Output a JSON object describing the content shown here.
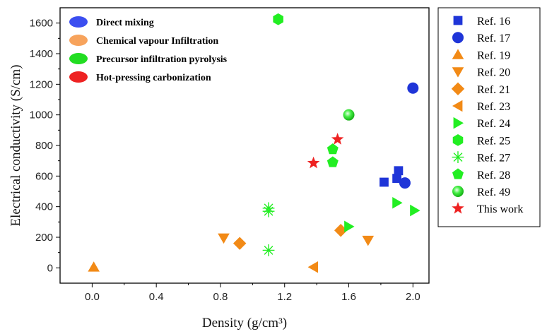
{
  "chart_data": {
    "type": "scatter",
    "xlabel": "Density (g/cm³)",
    "ylabel": "Electrical conductivity (S/cm)",
    "xlim": [
      -0.2,
      2.1
    ],
    "ylim": [
      -100,
      1700
    ],
    "xticks": [
      0.0,
      0.4,
      0.8,
      1.2,
      1.6,
      2.0
    ],
    "xtick_labels": [
      "0.0",
      "0.4",
      "0.8",
      "1.2",
      "1.6",
      "2.0"
    ],
    "yticks": [
      0,
      200,
      400,
      600,
      800,
      1000,
      1200,
      1400,
      1600
    ],
    "ytick_labels": [
      "0",
      "200",
      "400",
      "600",
      "800",
      "1000",
      "1200",
      "1400",
      "1600"
    ],
    "grid": false,
    "category_legend": {
      "placement": "top-left",
      "items": [
        {
          "label": "Direct mixing",
          "color": "#3b4ef0"
        },
        {
          "label": "Chemical vapour Infiltration",
          "color": "#f7a35c"
        },
        {
          "label": "Precursor infiltration pyrolysis",
          "color": "#22dd22"
        },
        {
          "label": "Hot-pressing carbonization",
          "color": "#ee2222"
        }
      ]
    },
    "series_legend_placement": "right",
    "series": [
      {
        "name": "Ref. 16",
        "marker": "square",
        "color": "#1f35d8",
        "points": [
          [
            1.82,
            560
          ],
          [
            1.9,
            585
          ],
          [
            1.91,
            635
          ]
        ]
      },
      {
        "name": "Ref. 17",
        "marker": "circle",
        "color": "#1f35d8",
        "points": [
          [
            1.95,
            555
          ],
          [
            2.0,
            1175
          ]
        ]
      },
      {
        "name": "Ref. 19",
        "marker": "triangle-up",
        "color": "#f28a16",
        "points": [
          [
            0.01,
            5
          ]
        ]
      },
      {
        "name": "Ref. 20",
        "marker": "triangle-down",
        "color": "#f28a16",
        "points": [
          [
            0.82,
            195
          ],
          [
            1.72,
            180
          ]
        ]
      },
      {
        "name": "Ref. 21",
        "marker": "diamond",
        "color": "#f28a16",
        "points": [
          [
            0.92,
            160
          ],
          [
            1.55,
            245
          ]
        ]
      },
      {
        "name": "Ref. 23",
        "marker": "triangle-left",
        "color": "#f28a16",
        "points": [
          [
            1.38,
            5
          ]
        ]
      },
      {
        "name": "Ref. 24",
        "marker": "triangle-right",
        "color": "#22ee22",
        "points": [
          [
            1.6,
            270
          ],
          [
            1.9,
            425
          ],
          [
            2.01,
            375
          ]
        ]
      },
      {
        "name": "Ref. 25",
        "marker": "hexagon",
        "color": "#22ee22",
        "points": [
          [
            1.16,
            1625
          ]
        ]
      },
      {
        "name": "Ref. 27",
        "marker": "asterisk",
        "color": "#22ee22",
        "points": [
          [
            1.1,
            115
          ],
          [
            1.1,
            370
          ],
          [
            1.1,
            390
          ]
        ]
      },
      {
        "name": "Ref. 28",
        "marker": "pentagon",
        "color": "#22ee22",
        "points": [
          [
            1.5,
            690
          ],
          [
            1.5,
            775
          ]
        ]
      },
      {
        "name": "Ref. 49",
        "marker": "sphere",
        "color": "#22ee22",
        "points": [
          [
            1.6,
            1000
          ]
        ]
      },
      {
        "name": "This work",
        "marker": "star",
        "color": "#ee2222",
        "points": [
          [
            1.38,
            685
          ],
          [
            1.53,
            840
          ]
        ]
      }
    ]
  }
}
